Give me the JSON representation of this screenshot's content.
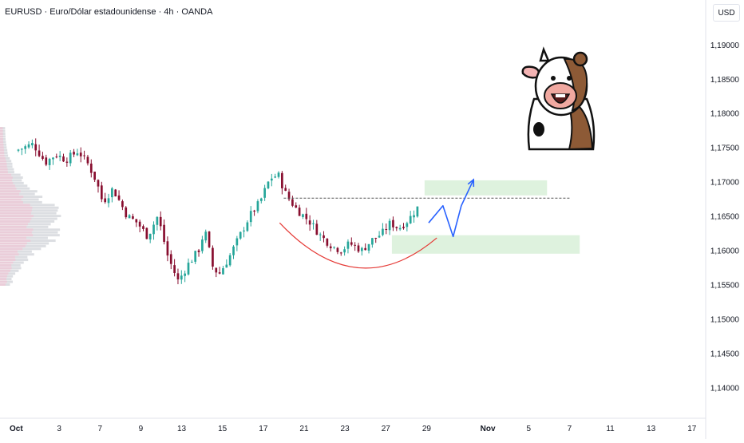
{
  "header": {
    "title": "EURUSD · Euro/Dólar estadounidense · 4h · OANDA",
    "currency": "USD"
  },
  "colors": {
    "up": "#26a69a",
    "down": "#880e2f",
    "curve": "#e53935",
    "arrow": "#2962ff",
    "zone": "#d8f0d8",
    "resistance": "#555555"
  },
  "chart_data": {
    "type": "candlestick",
    "title": "",
    "xlabel": "",
    "ylabel": "",
    "ylim": [
      1.1355,
      1.1965
    ],
    "yticks": [
      "1,19000",
      "1,18500",
      "1,18000",
      "1,17500",
      "1,17000",
      "1,16500",
      "1,16000",
      "1,15500",
      "1,15000",
      "1,14500",
      "1,14000"
    ],
    "ytick_values": [
      1.19,
      1.185,
      1.18,
      1.175,
      1.17,
      1.165,
      1.16,
      1.155,
      1.15,
      1.145,
      1.14
    ],
    "xticks": [
      "Oct",
      "3",
      "7",
      "9",
      "13",
      "15",
      "17",
      "21",
      "23",
      "27",
      "29",
      "Nov",
      "5",
      "7",
      "11",
      "13",
      "17"
    ],
    "xtick_positions": [
      0,
      2,
      4,
      6,
      8,
      10,
      12,
      14,
      16,
      18,
      20,
      23,
      25,
      27,
      29,
      31,
      33
    ],
    "xlim": [
      0,
      34.5
    ],
    "waypoints": [
      [
        0.0,
        1.1745
      ],
      [
        0.9,
        1.1755
      ],
      [
        1.5,
        1.1728
      ],
      [
        2.0,
        1.174
      ],
      [
        2.5,
        1.1732
      ],
      [
        3.1,
        1.1745
      ],
      [
        3.6,
        1.1725
      ],
      [
        4.0,
        1.17
      ],
      [
        4.3,
        1.167
      ],
      [
        4.8,
        1.169
      ],
      [
        5.5,
        1.165
      ],
      [
        6.0,
        1.164
      ],
      [
        6.5,
        1.162
      ],
      [
        7.0,
        1.165
      ],
      [
        7.5,
        1.159
      ],
      [
        8.0,
        1.1555
      ],
      [
        8.5,
        1.158
      ],
      [
        9.0,
        1.16
      ],
      [
        9.3,
        1.163
      ],
      [
        9.7,
        1.1575
      ],
      [
        10.0,
        1.1565
      ],
      [
        10.5,
        1.159
      ],
      [
        11.0,
        1.162
      ],
      [
        11.5,
        1.165
      ],
      [
        12.0,
        1.167
      ],
      [
        12.5,
        1.1705
      ],
      [
        12.9,
        1.171
      ],
      [
        13.3,
        1.168
      ],
      [
        13.8,
        1.166
      ],
      [
        14.5,
        1.164
      ],
      [
        15.0,
        1.162
      ],
      [
        15.6,
        1.1605
      ],
      [
        16.0,
        1.16
      ],
      [
        16.4,
        1.161
      ],
      [
        17.0,
        1.16
      ],
      [
        17.5,
        1.1615
      ],
      [
        18.0,
        1.1625
      ],
      [
        18.4,
        1.164
      ],
      [
        18.8,
        1.1632
      ],
      [
        19.3,
        1.1645
      ],
      [
        19.7,
        1.1662
      ]
    ],
    "annotations": {
      "resistance_line": {
        "y": 1.1676,
        "x_from": 13.0,
        "x_to": 27.0
      },
      "upper_zone": {
        "y_from": 1.168,
        "y_to": 1.1702,
        "x_from": 19.9,
        "x_to": 25.9
      },
      "lower_zone": {
        "y_from": 1.1595,
        "y_to": 1.1622,
        "x_from": 18.3,
        "x_to": 27.5
      },
      "curve": {
        "points": [
          [
            12.8,
            1.164
          ],
          [
            16.6,
            1.152
          ],
          [
            20.5,
            1.1618
          ]
        ]
      },
      "projection": {
        "points": [
          [
            20.1,
            1.164
          ],
          [
            20.8,
            1.1665
          ],
          [
            21.3,
            1.162
          ],
          [
            21.7,
            1.1665
          ],
          [
            22.3,
            1.1703
          ]
        ]
      }
    }
  }
}
